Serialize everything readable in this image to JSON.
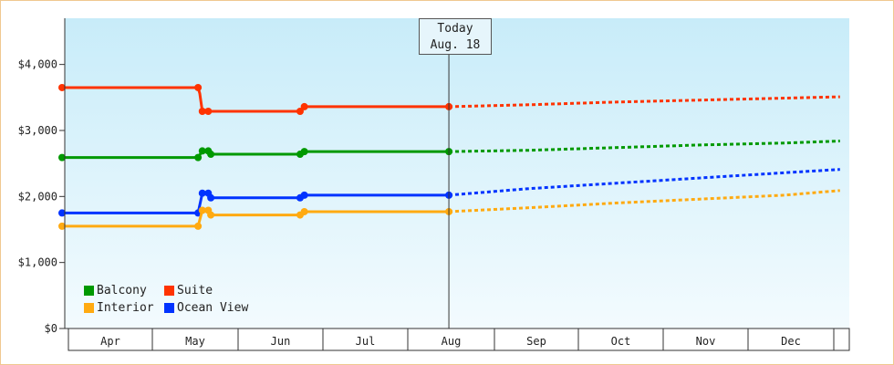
{
  "chart_data": {
    "type": "line",
    "title": "",
    "xlabel": "",
    "ylabel": "",
    "ylim": [
      0,
      4700
    ],
    "y_ticks": [
      "$0",
      "$1,000",
      "$2,000",
      "$3,000",
      "$4,000"
    ],
    "y_tick_values": [
      0,
      1000,
      2000,
      3000,
      4000
    ],
    "x_categories": [
      "Apr",
      "May",
      "Jun",
      "Jul",
      "Aug",
      "Sep",
      "Oct",
      "Nov",
      "Dec"
    ],
    "x_domain": [
      0,
      9.15
    ],
    "today": {
      "label": "Today",
      "date": "Aug. 18",
      "x": 4.55
    },
    "legend_position": "bottom-left",
    "series": [
      {
        "name": "Suite",
        "color": "#ff3300",
        "actual": [
          [
            0,
            3650
          ],
          [
            1.6,
            3650
          ],
          [
            1.62,
            3560
          ],
          [
            1.65,
            3290
          ],
          [
            1.7,
            3280
          ],
          [
            1.72,
            3290
          ],
          [
            2.8,
            3290
          ],
          [
            2.85,
            3360
          ],
          [
            4.55,
            3360
          ]
        ],
        "markers": [
          [
            0,
            3650
          ],
          [
            1.6,
            3650
          ],
          [
            1.65,
            3290
          ],
          [
            1.72,
            3290
          ],
          [
            2.8,
            3290
          ],
          [
            2.85,
            3360
          ],
          [
            4.55,
            3360
          ]
        ],
        "forecast": [
          [
            4.55,
            3360
          ],
          [
            5.5,
            3390
          ],
          [
            6.5,
            3430
          ],
          [
            7.5,
            3460
          ],
          [
            8.5,
            3490
          ],
          [
            9.15,
            3510
          ]
        ]
      },
      {
        "name": "Balcony",
        "color": "#009900",
        "actual": [
          [
            0,
            2590
          ],
          [
            1.6,
            2590
          ],
          [
            1.65,
            2690
          ],
          [
            1.72,
            2690
          ],
          [
            1.75,
            2640
          ],
          [
            2.8,
            2640
          ],
          [
            2.85,
            2680
          ],
          [
            4.55,
            2680
          ]
        ],
        "markers": [
          [
            0,
            2590
          ],
          [
            1.6,
            2590
          ],
          [
            1.65,
            2690
          ],
          [
            1.72,
            2690
          ],
          [
            1.75,
            2640
          ],
          [
            2.8,
            2640
          ],
          [
            2.85,
            2680
          ],
          [
            4.55,
            2680
          ]
        ],
        "forecast": [
          [
            4.55,
            2680
          ],
          [
            5.5,
            2700
          ],
          [
            6.5,
            2740
          ],
          [
            7.5,
            2780
          ],
          [
            8.5,
            2810
          ],
          [
            9.15,
            2840
          ]
        ]
      },
      {
        "name": "Ocean View",
        "color": "#0033ff",
        "actual": [
          [
            0,
            1750
          ],
          [
            1.6,
            1750
          ],
          [
            1.65,
            2050
          ],
          [
            1.72,
            2050
          ],
          [
            1.75,
            1980
          ],
          [
            2.8,
            1980
          ],
          [
            2.85,
            2020
          ],
          [
            4.55,
            2020
          ]
        ],
        "markers": [
          [
            0,
            1750
          ],
          [
            1.6,
            1750
          ],
          [
            1.65,
            2050
          ],
          [
            1.72,
            2050
          ],
          [
            1.75,
            1980
          ],
          [
            2.8,
            1980
          ],
          [
            2.85,
            2020
          ],
          [
            4.55,
            2020
          ]
        ],
        "forecast": [
          [
            4.55,
            2020
          ],
          [
            5.5,
            2120
          ],
          [
            6.5,
            2200
          ],
          [
            7.5,
            2280
          ],
          [
            8.5,
            2360
          ],
          [
            9.15,
            2410
          ]
        ]
      },
      {
        "name": "Interior",
        "color": "#ffaa11",
        "actual": [
          [
            0,
            1550
          ],
          [
            1.6,
            1550
          ],
          [
            1.65,
            1790
          ],
          [
            1.72,
            1790
          ],
          [
            1.75,
            1720
          ],
          [
            2.8,
            1720
          ],
          [
            2.85,
            1770
          ],
          [
            4.55,
            1770
          ]
        ],
        "markers": [
          [
            0,
            1550
          ],
          [
            1.6,
            1550
          ],
          [
            1.65,
            1790
          ],
          [
            1.72,
            1790
          ],
          [
            1.75,
            1720
          ],
          [
            2.8,
            1720
          ],
          [
            2.85,
            1770
          ],
          [
            4.55,
            1770
          ]
        ],
        "forecast": [
          [
            4.55,
            1770
          ],
          [
            5.5,
            1830
          ],
          [
            6.5,
            1900
          ],
          [
            7.5,
            1960
          ],
          [
            8.5,
            2020
          ],
          [
            9.15,
            2090
          ]
        ]
      }
    ]
  }
}
